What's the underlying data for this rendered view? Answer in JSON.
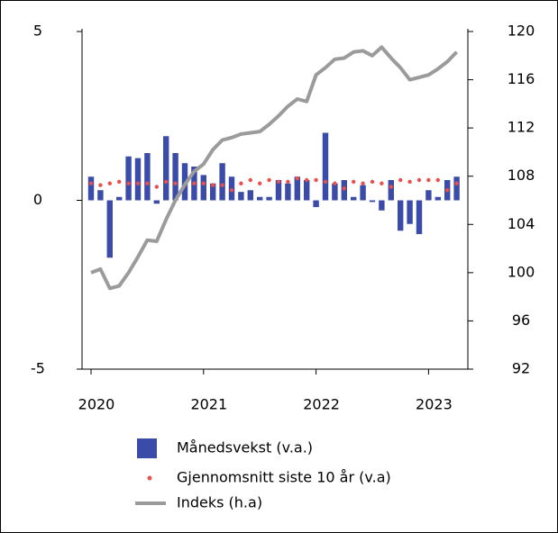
{
  "chart_data": {
    "type": "combo",
    "categories": [
      "2020",
      null,
      null,
      null,
      null,
      null,
      null,
      null,
      null,
      null,
      null,
      null,
      "2021",
      null,
      null,
      null,
      null,
      null,
      null,
      null,
      null,
      null,
      null,
      null,
      "2022",
      null,
      null,
      null,
      null,
      null,
      null,
      null,
      null,
      null,
      null,
      null,
      "2023",
      null,
      null,
      null
    ],
    "series": [
      {
        "name": "Månedsvekst (v.a.)",
        "type": "bar",
        "color": "#3b4ba8",
        "values": [
          0.7,
          0.3,
          -1.7,
          0.1,
          1.3,
          1.25,
          1.4,
          -0.1,
          1.9,
          1.4,
          1.1,
          1.0,
          0.75,
          0.5,
          1.1,
          0.7,
          0.25,
          0.3,
          0.1,
          0.1,
          0.6,
          0.5,
          0.7,
          0.6,
          -0.2,
          2.0,
          0.5,
          0.6,
          0.1,
          0.45,
          -0.05,
          -0.3,
          0.6,
          -0.9,
          -0.7,
          -1.0,
          0.3,
          0.1,
          0.6,
          0.7
        ]
      },
      {
        "name": "Gjennomsnitt siste 10 år (v.a)",
        "type": "scatter",
        "color": "#e8504f",
        "values": [
          0.5,
          0.45,
          0.5,
          0.55,
          0.5,
          0.5,
          0.5,
          0.4,
          0.55,
          0.5,
          0.45,
          0.5,
          0.5,
          0.45,
          0.45,
          0.3,
          0.5,
          0.6,
          0.5,
          0.6,
          0.55,
          0.55,
          0.65,
          0.6,
          0.6,
          0.55,
          0.5,
          0.35,
          0.55,
          0.5,
          0.55,
          0.5,
          0.4,
          0.6,
          0.55,
          0.6,
          0.6,
          0.6,
          0.3,
          0.5
        ]
      },
      {
        "name": "Indeks (h.a)",
        "type": "line",
        "axis": "y2",
        "color": "#9b9b9b",
        "values": [
          100,
          100.3,
          98.7,
          98.9,
          100,
          101.3,
          102.7,
          102.6,
          104.4,
          106,
          107.3,
          108.4,
          109,
          110.2,
          111,
          111.2,
          111.5,
          111.6,
          111.7,
          112.3,
          113,
          113.8,
          114.4,
          114.2,
          116.4,
          117,
          117.7,
          117.8,
          118.3,
          118.4,
          118,
          118.7,
          117.8,
          117,
          116,
          116.2,
          116.4,
          116.9,
          117.5,
          118.3
        ]
      }
    ],
    "ylim": [
      -5,
      5
    ],
    "yticks": [
      -5,
      0,
      5
    ],
    "y2lim": [
      92,
      120
    ],
    "y2ticks": [
      92,
      96,
      100,
      104,
      108,
      112,
      116,
      120
    ]
  }
}
